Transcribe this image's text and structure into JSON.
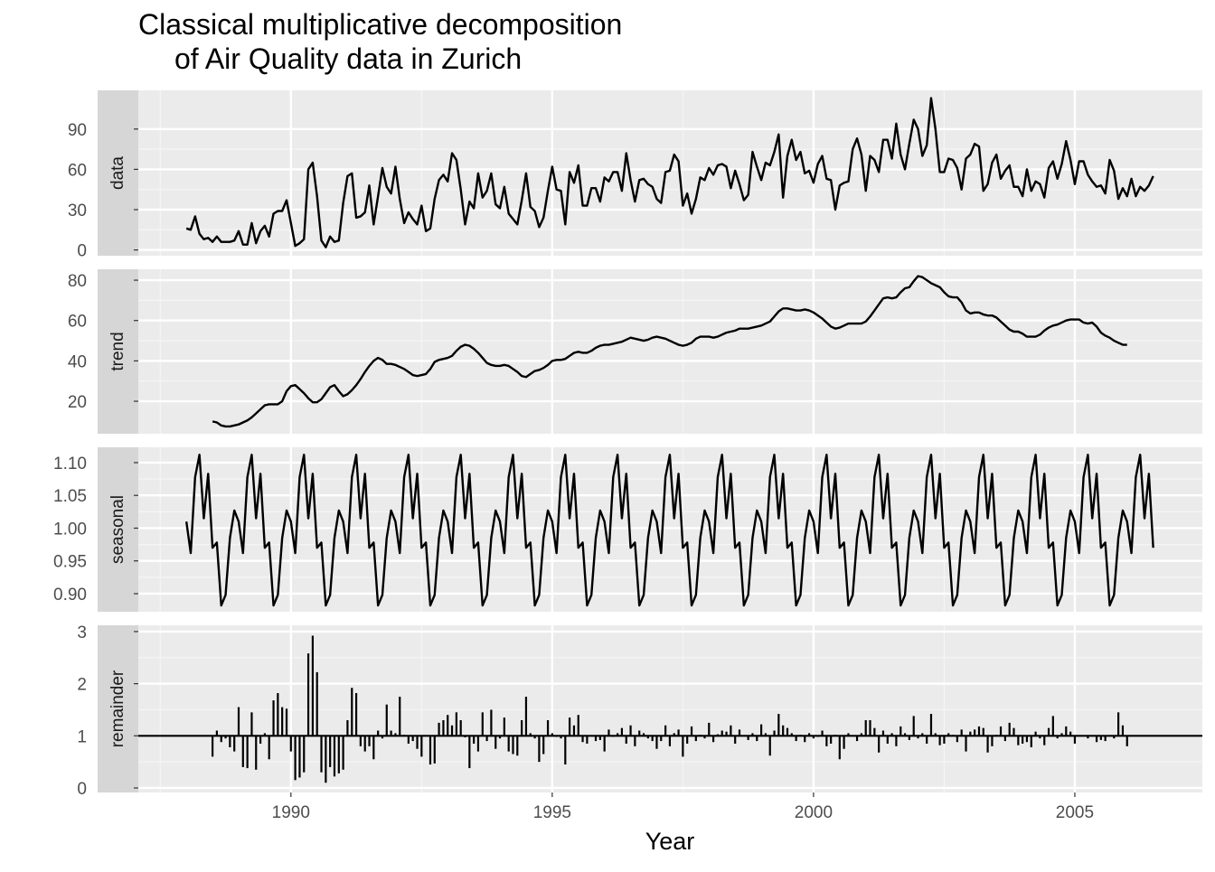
{
  "chart_data": {
    "type": "facet",
    "title": [
      "Classical multiplicative decomposition",
      "of Air Quality data in Zurich"
    ],
    "xlabel": "Year",
    "xlim": [
      1987.08,
      2007.44
    ],
    "xticks": [
      1990,
      1995,
      2000,
      2005
    ],
    "x": [
      1988,
      1988.083,
      1988.167,
      1988.25,
      1988.333,
      1988.417,
      1988.5,
      1988.583,
      1988.667,
      1988.75,
      1988.833,
      1988.917,
      1989,
      1989.083,
      1989.167,
      1989.25,
      1989.333,
      1989.417,
      1989.5,
      1989.583,
      1989.667,
      1989.75,
      1989.833,
      1989.917,
      1990,
      1990.083,
      1990.167,
      1990.25,
      1990.333,
      1990.417,
      1990.5,
      1990.583,
      1990.667,
      1990.75,
      1990.833,
      1990.917,
      1991,
      1991.083,
      1991.167,
      1991.25,
      1991.333,
      1991.417,
      1991.5,
      1991.583,
      1991.667,
      1991.75,
      1991.833,
      1991.917,
      1992,
      1992.083,
      1992.167,
      1992.25,
      1992.333,
      1992.417,
      1992.5,
      1992.583,
      1992.667,
      1992.75,
      1992.833,
      1992.917,
      1993,
      1993.083,
      1993.167,
      1993.25,
      1993.333,
      1993.417,
      1993.5,
      1993.583,
      1993.667,
      1993.75,
      1993.833,
      1993.917,
      1994,
      1994.083,
      1994.167,
      1994.25,
      1994.333,
      1994.417,
      1994.5,
      1994.583,
      1994.667,
      1994.75,
      1994.833,
      1994.917,
      1995,
      1995.083,
      1995.167,
      1995.25,
      1995.333,
      1995.417,
      1995.5,
      1995.583,
      1995.667,
      1995.75,
      1995.833,
      1995.917,
      1996,
      1996.083,
      1996.167,
      1996.25,
      1996.333,
      1996.417,
      1996.5,
      1996.583,
      1996.667,
      1996.75,
      1996.833,
      1996.917,
      1997,
      1997.083,
      1997.167,
      1997.25,
      1997.333,
      1997.417,
      1997.5,
      1997.583,
      1997.667,
      1997.75,
      1997.833,
      1997.917,
      1998,
      1998.083,
      1998.167,
      1998.25,
      1998.333,
      1998.417,
      1998.5,
      1998.583,
      1998.667,
      1998.75,
      1998.833,
      1998.917,
      1999,
      1999.083,
      1999.167,
      1999.25,
      1999.333,
      1999.417,
      1999.5,
      1999.583,
      1999.667,
      1999.75,
      1999.833,
      1999.917,
      2000,
      2000.083,
      2000.167,
      2000.25,
      2000.333,
      2000.417,
      2000.5,
      2000.583,
      2000.667,
      2000.75,
      2000.833,
      2000.917,
      2001,
      2001.083,
      2001.167,
      2001.25,
      2001.333,
      2001.417,
      2001.5,
      2001.583,
      2001.667,
      2001.75,
      2001.833,
      2001.917,
      2002,
      2002.083,
      2002.167,
      2002.25,
      2002.333,
      2002.417,
      2002.5,
      2002.583,
      2002.667,
      2002.75,
      2002.833,
      2002.917,
      2003,
      2003.083,
      2003.167,
      2003.25,
      2003.333,
      2003.417,
      2003.5,
      2003.583,
      2003.667,
      2003.75,
      2003.833,
      2003.917,
      2004,
      2004.083,
      2004.167,
      2004.25,
      2004.333,
      2004.417,
      2004.5,
      2004.583,
      2004.667,
      2004.75,
      2004.833,
      2004.917,
      2005,
      2005.083,
      2005.167,
      2005.25,
      2005.333,
      2005.417,
      2005.5,
      2005.583,
      2005.667,
      2005.75,
      2005.833,
      2005.917,
      2006,
      2006.083,
      2006.167,
      2006.25,
      2006.333,
      2006.417,
      2006.5
    ],
    "grid": true,
    "panels": [
      {
        "name": "data",
        "type": "line",
        "color": "#000000",
        "ylim": [
          -4.3,
          118.8
        ],
        "yticks": [
          0,
          30,
          60,
          90
        ],
        "values": [
          16,
          15,
          25,
          12,
          8,
          9,
          6,
          10,
          6,
          6,
          6,
          7,
          14,
          4,
          4,
          20,
          5,
          14,
          18,
          10,
          27,
          29,
          29,
          37,
          20,
          3,
          5,
          8,
          60,
          65,
          40,
          7,
          2,
          10,
          6,
          7,
          35,
          55,
          57,
          24,
          25,
          28,
          48,
          19,
          40,
          61,
          47,
          42,
          62,
          38,
          20,
          28,
          23,
          19,
          33,
          14,
          16,
          38,
          52,
          56,
          51,
          72,
          67,
          45,
          19,
          36,
          31,
          57,
          39,
          44,
          57,
          34,
          31,
          47,
          27,
          23,
          19,
          37,
          57,
          32,
          29,
          17,
          24,
          44,
          62,
          45,
          44,
          19,
          58,
          50,
          63,
          33,
          33,
          46,
          46,
          36,
          54,
          51,
          58,
          58,
          44,
          72,
          52,
          36,
          52,
          53,
          49,
          47,
          38,
          35,
          58,
          59,
          71,
          66,
          33,
          42,
          27,
          38,
          54,
          52,
          61,
          56,
          63,
          64,
          62,
          46,
          59,
          49,
          37,
          41,
          73,
          62,
          52,
          65,
          63,
          73,
          86,
          39,
          70,
          82,
          67,
          73,
          57,
          59,
          50,
          64,
          70,
          53,
          52,
          30,
          48,
          50,
          51,
          75,
          83,
          71,
          44,
          70,
          67,
          58,
          82,
          82,
          68,
          94,
          71,
          60,
          79,
          97,
          90,
          70,
          78,
          113,
          90,
          58,
          58,
          68,
          67,
          61,
          45,
          68,
          71,
          79,
          77,
          44,
          49,
          65,
          71,
          53,
          59,
          63,
          47,
          47,
          40,
          60,
          44,
          51,
          49,
          39,
          61,
          66,
          53,
          64,
          81,
          67,
          49,
          66,
          66,
          56,
          51,
          47,
          48,
          42,
          67,
          59,
          38,
          46,
          40,
          53,
          40,
          47,
          44,
          48,
          55
        ]
      },
      {
        "name": "trend",
        "type": "line",
        "color": "#000000",
        "ylim": [
          3.9,
          85.4
        ],
        "yticks": [
          20,
          40,
          60,
          80
        ],
        "values": [
          null,
          null,
          null,
          null,
          null,
          null,
          10,
          9.5,
          8,
          7.5,
          7.5,
          8,
          8.5,
          9.5,
          10.5,
          12,
          14,
          16,
          18,
          18.5,
          18.5,
          18.5,
          20,
          25,
          27.5,
          28,
          26,
          24,
          21.5,
          19.5,
          19.5,
          21,
          24,
          27,
          28,
          25,
          22.5,
          23.5,
          25.5,
          28,
          31,
          34.5,
          37.5,
          40,
          41.5,
          40.5,
          38.5,
          38.5,
          38,
          37,
          36,
          34.5,
          33,
          32.5,
          33,
          33.5,
          36,
          39.5,
          40.5,
          41,
          41.5,
          42.5,
          45,
          47,
          48,
          47.5,
          46,
          44,
          41.5,
          39,
          38,
          37.5,
          37.5,
          38,
          37.5,
          36,
          34.5,
          32.5,
          32,
          33.5,
          35,
          35.5,
          36.5,
          38,
          40,
          40.5,
          40.5,
          41,
          42.5,
          44,
          44.5,
          44,
          44,
          45,
          46.5,
          47.5,
          48,
          48,
          48.5,
          49,
          49.5,
          50.5,
          51.5,
          51,
          50.5,
          50,
          50.5,
          51.5,
          52,
          51.5,
          51,
          50,
          49,
          48,
          47.5,
          48,
          49,
          51,
          52,
          52,
          52,
          51.5,
          52,
          53,
          54,
          54.5,
          55,
          56,
          56,
          56,
          56.5,
          57,
          57.5,
          58.5,
          59.5,
          62,
          64.5,
          66,
          66,
          65.5,
          65,
          65,
          65.5,
          65,
          64,
          62.5,
          61,
          59,
          57,
          56,
          56.5,
          57.5,
          58.5,
          58.5,
          58.5,
          58.5,
          59.5,
          62,
          65,
          68,
          71,
          71.5,
          71,
          71.5,
          74,
          76,
          76.5,
          79.5,
          82,
          81.5,
          80,
          78.5,
          77.5,
          76.5,
          74,
          72,
          71.5,
          71.5,
          69,
          65,
          63.5,
          64,
          64,
          63,
          62.5,
          62.5,
          61.5,
          59.5,
          57.5,
          55.5,
          54.5,
          54.5,
          53.5,
          52,
          52,
          52,
          53,
          55,
          56.5,
          57.5,
          58,
          59,
          60,
          60.5,
          60.5,
          60.5,
          59,
          58.5,
          59,
          57,
          54,
          52.5,
          51.5,
          50,
          49,
          48,
          48,
          null,
          null,
          null,
          null,
          null,
          null
        ]
      },
      {
        "name": "seasonal",
        "type": "line",
        "color": "#000000",
        "ylim": [
          0.8724,
          1.1234
        ],
        "yticks": [
          {
            "value": 0.9,
            "label": "0.90"
          },
          0.95,
          {
            "value": 1.0,
            "label": "1.00"
          },
          1.05,
          {
            "value": 1.1,
            "label": "1.10"
          }
        ],
        "values": [
          1.01,
          0.962,
          1.078,
          1.112,
          1.015,
          1.083,
          0.97,
          0.978,
          0.882,
          0.898,
          0.985,
          1.027,
          1.01,
          0.962,
          1.078,
          1.112,
          1.015,
          1.083,
          0.97,
          0.978,
          0.882,
          0.898,
          0.985,
          1.027,
          1.01,
          0.962,
          1.078,
          1.112,
          1.015,
          1.083,
          0.97,
          0.978,
          0.882,
          0.898,
          0.985,
          1.027,
          1.01,
          0.962,
          1.078,
          1.112,
          1.015,
          1.083,
          0.97,
          0.978,
          0.882,
          0.898,
          0.985,
          1.027,
          1.01,
          0.962,
          1.078,
          1.112,
          1.015,
          1.083,
          0.97,
          0.978,
          0.882,
          0.898,
          0.985,
          1.027,
          1.01,
          0.962,
          1.078,
          1.112,
          1.015,
          1.083,
          0.97,
          0.978,
          0.882,
          0.898,
          0.985,
          1.027,
          1.01,
          0.962,
          1.078,
          1.112,
          1.015,
          1.083,
          0.97,
          0.978,
          0.882,
          0.898,
          0.985,
          1.027,
          1.01,
          0.962,
          1.078,
          1.112,
          1.015,
          1.083,
          0.97,
          0.978,
          0.882,
          0.898,
          0.985,
          1.027,
          1.01,
          0.962,
          1.078,
          1.112,
          1.015,
          1.083,
          0.97,
          0.978,
          0.882,
          0.898,
          0.985,
          1.027,
          1.01,
          0.962,
          1.078,
          1.112,
          1.015,
          1.083,
          0.97,
          0.978,
          0.882,
          0.898,
          0.985,
          1.027,
          1.01,
          0.962,
          1.078,
          1.112,
          1.015,
          1.083,
          0.97,
          0.978,
          0.882,
          0.898,
          0.985,
          1.027,
          1.01,
          0.962,
          1.078,
          1.112,
          1.015,
          1.083,
          0.97,
          0.978,
          0.882,
          0.898,
          0.985,
          1.027,
          1.01,
          0.962,
          1.078,
          1.112,
          1.015,
          1.083,
          0.97,
          0.978,
          0.882,
          0.898,
          0.985,
          1.027,
          1.01,
          0.962,
          1.078,
          1.112,
          1.015,
          1.083,
          0.97,
          0.978,
          0.882,
          0.898,
          0.985,
          1.027,
          1.01,
          0.962,
          1.078,
          1.112,
          1.015,
          1.083,
          0.97,
          0.978,
          0.882,
          0.898,
          0.985,
          1.027,
          1.01,
          0.962,
          1.078,
          1.112,
          1.015,
          1.083,
          0.97,
          0.978,
          0.882,
          0.898,
          0.985,
          1.027,
          1.01,
          0.962,
          1.078,
          1.112,
          1.015,
          1.083,
          0.97,
          0.978,
          0.882,
          0.898,
          0.985,
          1.027,
          1.01,
          0.962,
          1.078,
          1.112,
          1.015,
          1.083,
          0.97,
          0.978,
          0.882,
          0.898,
          0.985,
          1.027,
          1.01,
          0.962,
          1.078,
          1.112,
          1.015,
          1.083,
          0.97
        ]
      },
      {
        "name": "remainder",
        "type": "bar",
        "color": "#000000",
        "baseline": 1,
        "ylim": [
          -0.087,
          3.12
        ],
        "yticks": [
          0,
          1,
          2,
          3
        ],
        "values": [
          null,
          null,
          null,
          null,
          null,
          null,
          0.6,
          1.1,
          0.88,
          0.95,
          0.78,
          0.7,
          1.55,
          0.4,
          0.38,
          1.45,
          0.35,
          0.85,
          1.05,
          0.55,
          1.68,
          1.82,
          1.55,
          1.52,
          0.7,
          0.15,
          0.2,
          0.3,
          2.58,
          2.92,
          2.22,
          0.3,
          0.1,
          0.4,
          0.22,
          0.28,
          0.35,
          1.3,
          1.92,
          1.82,
          0.8,
          0.7,
          0.8,
          0.55,
          1.1,
          0.95,
          1.6,
          1.1,
          1.05,
          1.75,
          1.02,
          0.85,
          0.9,
          0.75,
          0.6,
          1.0,
          0.45,
          0.47,
          1.25,
          1.3,
          1.4,
          1.2,
          1.45,
          1.3,
          0.97,
          0.38,
          0.85,
          0.7,
          1.45,
          0.9,
          1.5,
          0.75,
          0.95,
          1.35,
          0.7,
          0.65,
          0.62,
          1.3,
          1.75,
          1.05,
          0.95,
          0.5,
          0.65,
          1.3,
          1.05,
          0.98,
          0.95,
          0.45,
          1.35,
          1.2,
          1.4,
          0.88,
          0.85,
          1.0,
          0.9,
          0.92,
          0.7,
          1.12,
          0.98,
          1.05,
          1.15,
          0.85,
          1.2,
          0.8,
          1.1,
          1.05,
          0.95,
          0.9,
          0.75,
          0.9,
          1.2,
          0.8,
          1.05,
          1.12,
          0.6,
          0.85,
          1.18,
          0.9,
          1.02,
          0.95,
          1.25,
          0.88,
          1.03,
          1.1,
          1.08,
          1.2,
          0.85,
          1.12,
          1.0,
          0.92,
          1.05,
          0.9,
          1.22,
          1.05,
          0.62,
          1.1,
          1.42,
          1.2,
          1.15,
          1.05,
          0.9,
          1.02,
          0.88,
          1.05,
          0.95,
          0.98,
          1.1,
          0.8,
          0.85,
          1.02,
          0.55,
          0.75,
          1.05,
          1.0,
          0.9,
          1.05,
          1.3,
          1.3,
          1.15,
          0.68,
          1.1,
          0.85,
          1.05,
          0.8,
          1.18,
          1.05,
          0.92,
          1.38,
          0.95,
          1.05,
          0.85,
          1.42,
          1.05,
          0.82,
          0.85,
          1.05,
          1.02,
          0.88,
          1.12,
          0.7,
          1.08,
          1.12,
          1.18,
          1.15,
          0.68,
          0.8,
          1.02,
          1.18,
          0.9,
          1.25,
          1.15,
          0.82,
          0.85,
          0.88,
          0.78,
          1.08,
          0.95,
          0.82,
          1.15,
          1.38,
          0.95,
          1.05,
          1.18,
          1.08,
          0.85,
          1.0,
          1.0,
          0.95,
          1.0,
          0.88,
          0.92,
          0.9,
          1.0,
          0.95,
          1.45,
          1.2,
          0.8,
          null,
          null,
          null,
          null,
          null,
          null
        ]
      }
    ]
  }
}
